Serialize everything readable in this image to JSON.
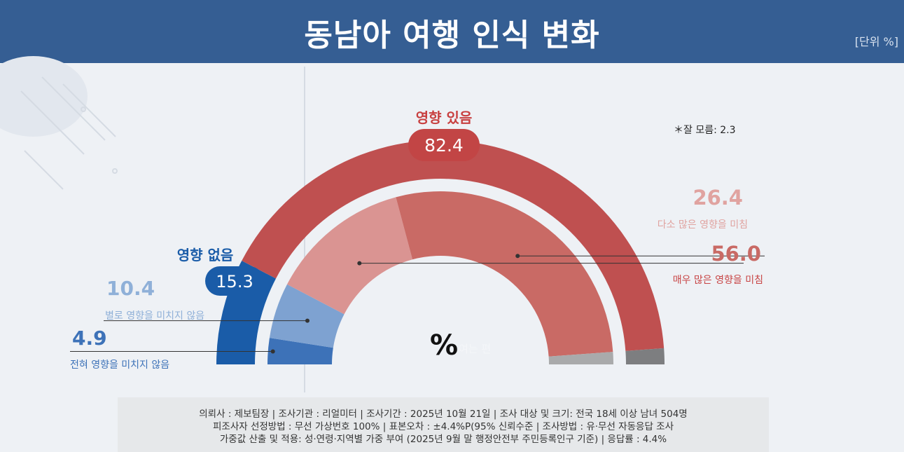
{
  "header": {
    "title": "동남아 여행 인식 변화",
    "unit": "[단위 %]"
  },
  "note": "＊잘 모름: 2.3",
  "center_symbol": "%",
  "center_ghost": "여는 편",
  "colors": {
    "header": "#355e93",
    "yes_outer": "#bf5050",
    "no_outer": "#1a5ca8",
    "very_much": "#c96a65",
    "somewhat": "#da9492",
    "not_much": "#7ea2d1",
    "not_at_all": "#3d72b8",
    "unknown_outer": "#7d7e80",
    "unknown_inner": "#a9aaab",
    "yes_label": "#c84040",
    "no_label": "#1a5ca8"
  },
  "chart_data": {
    "type": "pie",
    "subtype": "half-donut",
    "title": "동남아 여행 인식 변화",
    "unit": "%",
    "outer_ring": [
      {
        "name": "영향 없음",
        "value": 15.3
      },
      {
        "name": "영향 있음",
        "value": 82.4
      },
      {
        "name": "잘 모름",
        "value": 2.3
      }
    ],
    "inner_ring": [
      {
        "name": "전혀 영향을 미치지 않음",
        "value": 4.9,
        "label_value": "4.9"
      },
      {
        "name": "별로 영향을 미치지 않음",
        "value": 10.4,
        "label_value": "10.4"
      },
      {
        "name": "다소 많은 영향을 미침",
        "value": 26.4,
        "label_value": "26.4"
      },
      {
        "name": "매우 많은 영향을 미침",
        "value": 56.0,
        "label_value": "56.0"
      },
      {
        "name": "잘 모름",
        "value": 2.3
      }
    ],
    "group_labels": {
      "yes": {
        "name": "영향 있음",
        "value": "82.4"
      },
      "no": {
        "name": "영향 없음",
        "value": "15.3"
      }
    }
  },
  "footer": {
    "line1": "의뢰사 : 제보팀장  | 조사기관 : 리얼미터  |  조사기간 : 2025년 10월 21일 | 조사 대상 및 크기: 전국 18세 이상 남녀 504명",
    "line2": "피조사자 선정방법 : 무선 가상번호 100% | 표본오차 : ±4.4%P(95% 신뢰수준 | 조사방법 : 유·무선 자동응답 조사",
    "line3": "가중값 산출 및 적용: 성·연령·지역별 가중 부여 (2025년 9월 말 행정안전부 주민등록인구 기준) | 응답률 : 4.4%"
  }
}
